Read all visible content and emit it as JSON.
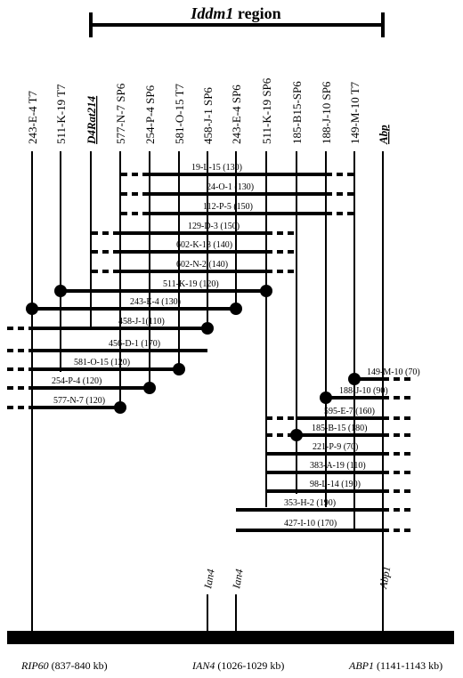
{
  "region": {
    "title_italic": "Iddm1",
    "title_rest": " region"
  },
  "markers": [
    {
      "label": "243-E-4 T7"
    },
    {
      "label": "511-K-19 T7"
    },
    {
      "label": "D4Rat214",
      "emphasis": "bold-italic-underline"
    },
    {
      "label": "577-N-7 SP6"
    },
    {
      "label": "254-P-4 SP6"
    },
    {
      "label": "581-O-15 T7"
    },
    {
      "label": "458-J-1 SP6"
    },
    {
      "label": "243-E-4 SP6"
    },
    {
      "label": "511-K-19 SP6"
    },
    {
      "label": "185-B15-SP6"
    },
    {
      "label": "188-J-10 SP6"
    },
    {
      "label": "149-M-10 T7"
    },
    {
      "label": "Abp",
      "emphasis": "bold-italic-underline"
    }
  ],
  "clones": [
    {
      "label": "19-L-15 (130)"
    },
    {
      "label": "24-O-1 (130)"
    },
    {
      "label": "112-P-5 (150)"
    },
    {
      "label": "129-D-3 (150)"
    },
    {
      "label": "602-K-18 (140)"
    },
    {
      "label": "602-N-2 (140)"
    },
    {
      "label": "511-K-19 (120)"
    },
    {
      "label": "243-E-4 (130)"
    },
    {
      "label": "458-J-1(110)"
    },
    {
      "label": "456-D-1 (170)"
    },
    {
      "label": "581-O-15 (120)"
    },
    {
      "label": "254-P-4 (120)"
    },
    {
      "label": "577-N-7 (120)"
    },
    {
      "label": "149-M-10 (70)"
    },
    {
      "label": "188-J-10 (90)"
    },
    {
      "label": "595-E-7 (160)"
    },
    {
      "label": "185-B-15 (180)"
    },
    {
      "label": "221-P-9 (70)"
    },
    {
      "label": "383-A-19 (110)"
    },
    {
      "label": "98-L-14 (190)"
    },
    {
      "label": "353-H-2 (190)"
    },
    {
      "label": "427-I-10 (170)"
    }
  ],
  "genes": [
    {
      "label": "Ian4"
    },
    {
      "label": "Ian4"
    },
    {
      "label": "Abp1"
    }
  ],
  "loci": [
    {
      "name": "RIP60",
      "range": " (837-840 kb)"
    },
    {
      "name": "IAN4",
      "range": " (1026-1029 kb)"
    },
    {
      "name": "ABP1",
      "range": " (1141-1143 kb)"
    }
  ]
}
